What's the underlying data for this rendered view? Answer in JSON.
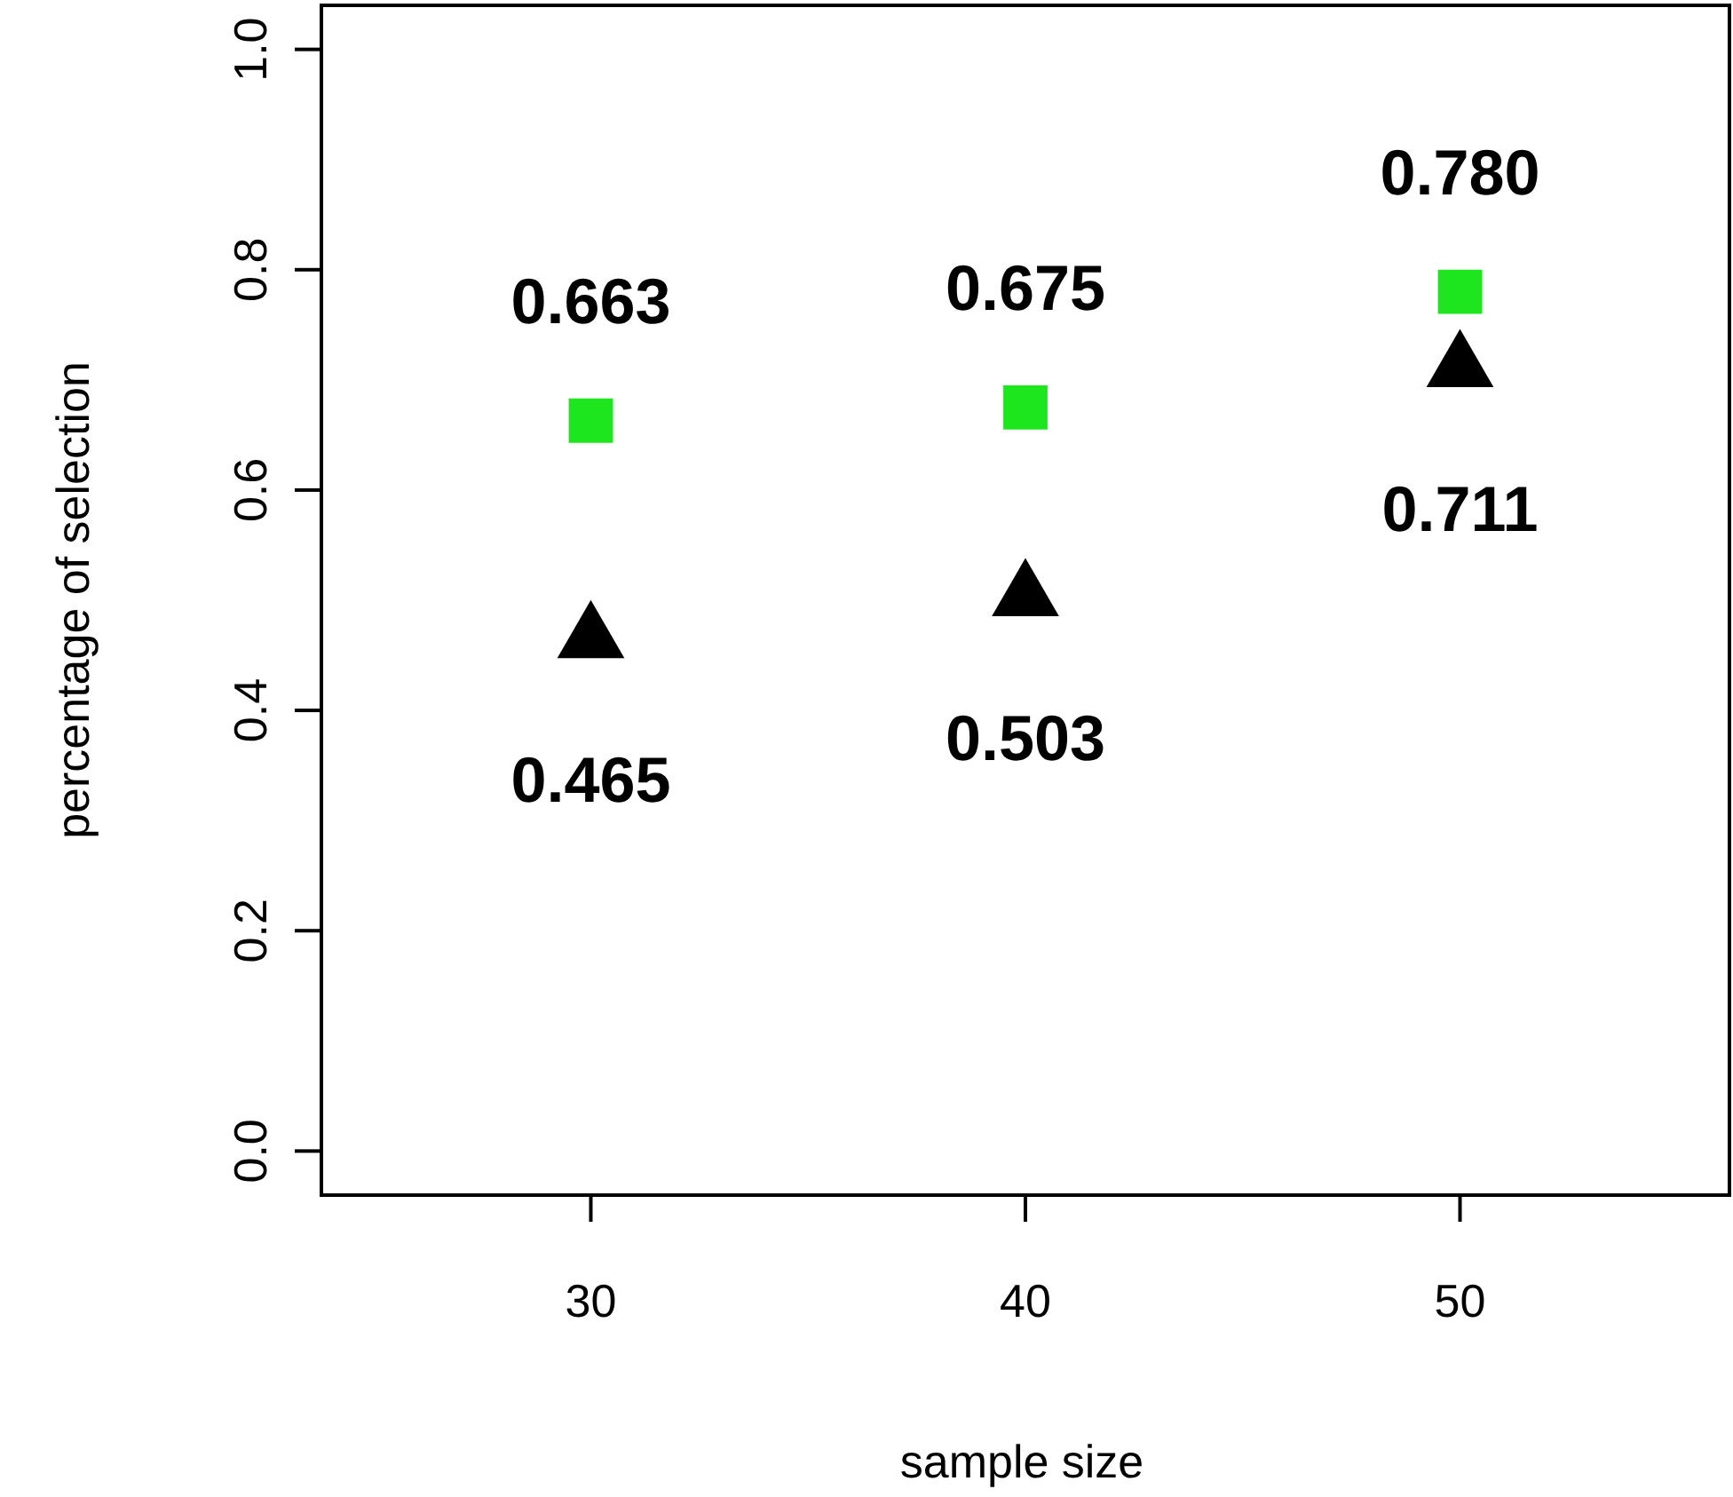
{
  "chart_data": {
    "type": "scatter",
    "xlabel": "sample size",
    "ylabel": "percentage of selection",
    "x": [
      30,
      40,
      50
    ],
    "series": [
      {
        "color": "#1ee61e",
        "marker": "square",
        "values": [
          0.663,
          0.675,
          0.78
        ],
        "value_labels": [
          "0.663",
          "0.675",
          "0.780"
        ]
      },
      {
        "color": "#000000",
        "marker": "triangle",
        "values": [
          0.465,
          0.503,
          0.711
        ],
        "value_labels": [
          "0.465",
          "0.503",
          "0.711"
        ]
      }
    ],
    "xlim": [
      23.8,
      56.2
    ],
    "xticks": [
      30,
      40,
      50
    ],
    "ylim": [
      -0.04,
      1.04
    ],
    "yticks": [
      {
        "value": 0,
        "label": "0.0"
      },
      0.2,
      0.4,
      0.6,
      0.8,
      {
        "value": 1,
        "label": "1.0"
      }
    ],
    "grid": false
  }
}
